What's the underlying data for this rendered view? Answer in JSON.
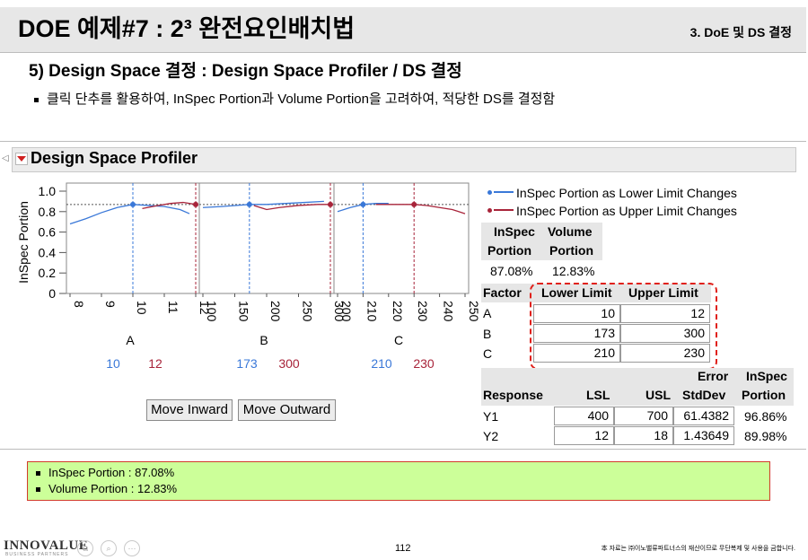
{
  "slide": {
    "title": "DOE 예제#7 : 2³ 완전요인배치법",
    "section": "3. DoE 및 DS 결정",
    "subheading": "5) Design Space 결정 : Design Space Profiler / DS 결정",
    "bullet": "클릭 단추를 활용하여, InSpec Portion과 Volume Portion을 고려하여, 적당한 DS를 결정함",
    "page_number": "112",
    "copyright": "本 자료는 ㈜이노밸류파트너스의 재산이므로 무단복제 및 사용을 금합니다.",
    "logo": "INNOVALUE",
    "logo_sub": "BUSINESS PARTNERS"
  },
  "profiler": {
    "title": "Design Space Profiler",
    "y_axis_label": "InSpec Portion",
    "y_ticks": [
      "1.0",
      "0.8",
      "0.6",
      "0.4",
      "0.2",
      "0"
    ],
    "buttons": {
      "move_inward": "Move Inward",
      "move_outward": "Move Outward"
    }
  },
  "legend": {
    "lower": "InSpec Portion as Lower Limit Changes",
    "upper": "InSpec Portion as Upper Limit Changes"
  },
  "summary_table": {
    "headers": [
      [
        "InSpec",
        "Portion"
      ],
      [
        "Volume",
        "Portion"
      ]
    ],
    "values": [
      "87.08%",
      "12.83%"
    ]
  },
  "factor_table": {
    "headers": [
      "Factor",
      "Lower Limit",
      "Upper Limit"
    ],
    "rows": [
      {
        "factor": "A",
        "lower": "10",
        "upper": "12"
      },
      {
        "factor": "B",
        "lower": "173",
        "upper": "300"
      },
      {
        "factor": "C",
        "lower": "210",
        "upper": "230"
      }
    ]
  },
  "response_table": {
    "headers": {
      "response": "Response",
      "lsl": "LSL",
      "usl": "USL",
      "err1": "Error",
      "err2": "StdDev",
      "ins1": "InSpec",
      "ins2": "Portion"
    },
    "rows": [
      {
        "response": "Y1",
        "lsl": "400",
        "usl": "700",
        "err": "61.4382",
        "inspec": "96.86%"
      },
      {
        "response": "Y2",
        "lsl": "12",
        "usl": "18",
        "err": "1.43649",
        "inspec": "89.98%"
      }
    ]
  },
  "summary_box": {
    "line1": "InSpec Portion : 87.08%",
    "line2": "Volume Portion : 12.83%"
  },
  "colors": {
    "lower": "#3a78d8",
    "upper": "#a8243a",
    "highlight_border": "#e0201a",
    "summary_bg": "#ccff99"
  },
  "chart_data": {
    "type": "line",
    "y_range": [
      0,
      1.0
    ],
    "current_portion": 0.87,
    "panels": [
      {
        "factor": "A",
        "x_range": [
          8,
          12
        ],
        "x_ticks": [
          "8",
          "9",
          "10",
          "11",
          "12"
        ],
        "lower_limit": 10,
        "upper_limit": 12,
        "lower_label": "10",
        "upper_label": "12",
        "lower_series": {
          "x": [
            8,
            8.5,
            9,
            9.5,
            10,
            10.5,
            11,
            11.5,
            11.8
          ],
          "y": [
            0.68,
            0.73,
            0.79,
            0.84,
            0.87,
            0.86,
            0.85,
            0.82,
            0.78
          ]
        },
        "upper_series": {
          "x": [
            10.3,
            10.8,
            11.2,
            11.6,
            12
          ],
          "y": [
            0.83,
            0.86,
            0.88,
            0.89,
            0.87
          ]
        }
      },
      {
        "factor": "B",
        "x_range": [
          100,
          300
        ],
        "x_ticks": [
          "100",
          "150",
          "200",
          "250",
          "300"
        ],
        "lower_limit": 173,
        "upper_limit": 300,
        "lower_label": "173",
        "upper_label": "300",
        "lower_series": {
          "x": [
            100,
            130,
            173,
            200,
            230,
            260,
            290
          ],
          "y": [
            0.84,
            0.85,
            0.87,
            0.87,
            0.88,
            0.89,
            0.9
          ]
        },
        "upper_series": {
          "x": [
            180,
            190,
            200,
            220,
            250,
            280,
            300
          ],
          "y": [
            0.86,
            0.84,
            0.82,
            0.84,
            0.86,
            0.87,
            0.87
          ]
        }
      },
      {
        "factor": "C",
        "x_range": [
          200,
          250
        ],
        "x_ticks": [
          "200",
          "210",
          "220",
          "230",
          "240",
          "250"
        ],
        "lower_limit": 210,
        "upper_limit": 230,
        "lower_label": "210",
        "upper_label": "230",
        "lower_series": {
          "x": [
            200,
            205,
            210,
            215,
            220
          ],
          "y": [
            0.8,
            0.84,
            0.87,
            0.88,
            0.88
          ]
        },
        "upper_series": {
          "x": [
            215,
            220,
            225,
            230,
            235,
            240,
            245,
            250
          ],
          "y": [
            0.87,
            0.87,
            0.87,
            0.87,
            0.86,
            0.84,
            0.82,
            0.78
          ]
        }
      }
    ]
  }
}
